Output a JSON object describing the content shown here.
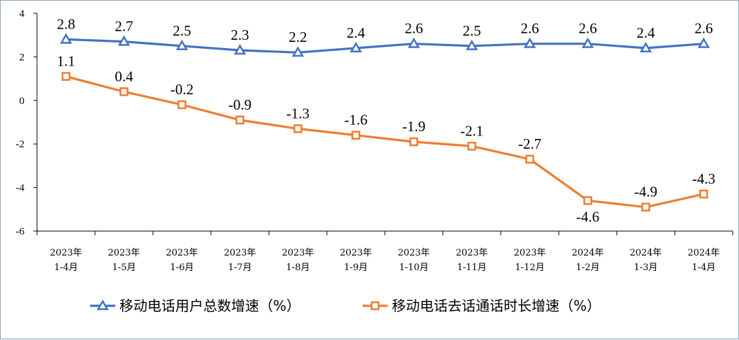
{
  "chart_data": {
    "type": "line",
    "categories": [
      [
        "2023年",
        "1-4月"
      ],
      [
        "2023年",
        "1-5月"
      ],
      [
        "2023年",
        "1-6月"
      ],
      [
        "2023年",
        "1-7月"
      ],
      [
        "2023年",
        "1-8月"
      ],
      [
        "2023年",
        "1-9月"
      ],
      [
        "2023年",
        "1-10月"
      ],
      [
        "2023年",
        "1-11月"
      ],
      [
        "2023年",
        "1-12月"
      ],
      [
        "2024年",
        "1-2月"
      ],
      [
        "2024年",
        "1-3月"
      ],
      [
        "2024年",
        "1-4月"
      ]
    ],
    "ylim": [
      -6,
      4
    ],
    "yticks": [
      4,
      2,
      0,
      -2,
      -4,
      -6
    ],
    "grid": false,
    "legend_position": "bottom",
    "series": [
      {
        "name": "移动电话用户总数增速（%）",
        "color": "#4472c4",
        "marker": "triangle",
        "values": [
          2.8,
          2.7,
          2.5,
          2.3,
          2.2,
          2.4,
          2.6,
          2.5,
          2.6,
          2.6,
          2.4,
          2.6
        ],
        "labels": [
          "2.8",
          "2.7",
          "2.5",
          "2.3",
          "2.2",
          "2.4",
          "2.6",
          "2.5",
          "2.6",
          "2.6",
          "2.4",
          "2.6"
        ]
      },
      {
        "name": "移动电话去话通话时长增速（%）",
        "color": "#ed7d31",
        "marker": "square",
        "values": [
          1.1,
          0.4,
          -0.2,
          -0.9,
          -1.3,
          -1.6,
          -1.9,
          -2.1,
          -2.7,
          -4.6,
          -4.9,
          -4.3
        ],
        "labels": [
          "1.1",
          "0.4",
          "-0.2",
          "-0.9",
          "-1.3",
          "-1.6",
          "-1.9",
          "-2.1",
          "-2.7",
          "-4.6",
          "-4.9",
          "-4.3"
        ]
      }
    ]
  }
}
